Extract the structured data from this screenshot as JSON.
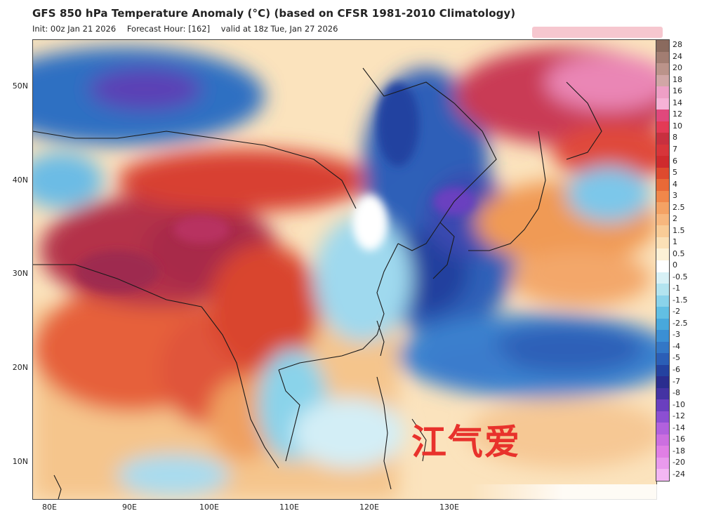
{
  "title": "GFS 850 hPa Temperature Anomaly (°C) (based on CFSR 1981-2010 Climatology)",
  "subtitle": {
    "init": "Init: 00z Jan 21 2026",
    "forecast_hour": "Forecast Hour: [162]",
    "valid": "valid at 18z Tue, Jan 27 2026"
  },
  "lat_labels": [
    "50N",
    "40N",
    "30N",
    "20N",
    "10N"
  ],
  "lon_labels": [
    "80E",
    "90E",
    "100E",
    "110E",
    "120E",
    "130E"
  ],
  "colorbar": {
    "values": [
      "28",
      "24",
      "20",
      "18",
      "16",
      "14",
      "12",
      "10",
      "8",
      "7",
      "6",
      "5",
      "4",
      "3",
      "2.5",
      "2",
      "1.5",
      "1",
      "0.5",
      "0",
      "-0.5",
      "-1",
      "-1.5",
      "-2",
      "-2.5",
      "-3",
      "-4",
      "-5",
      "-6",
      "-7",
      "-8",
      "-10",
      "-12",
      "-14",
      "-16",
      "-18",
      "-20",
      "-24"
    ],
    "colors": [
      "#8a6a5e",
      "#a27d72",
      "#bb938a",
      "#d1a6a6",
      "#ee9fc6",
      "#f6b2d6",
      "#e0487c",
      "#e33a55",
      "#c8303f",
      "#d7353a",
      "#cf2a2d",
      "#de4a2e",
      "#e86937",
      "#f0874a",
      "#f4a264",
      "#f7b77e",
      "#f9cc97",
      "#fbe0b6",
      "#fdf1d6",
      "#ffffff",
      "#d8f1f6",
      "#b3e4ef",
      "#8ad3ea",
      "#62bfe3",
      "#48a8dc",
      "#3b8fd4",
      "#3377c6",
      "#2b5eb6",
      "#2442a0",
      "#2a2d8f",
      "#4433a3",
      "#6a3fbf",
      "#8c4fd2",
      "#b161dd",
      "#cc6fe0",
      "#e07fe5",
      "#e99aed",
      "#f3b7f3"
    ]
  },
  "map": {
    "icon": "temperature-anomaly-map",
    "note_colors": {
      "warm": "#d03a2e",
      "cold": "#2b5eb6",
      "neutral": "#fff6e6"
    }
  },
  "watermark": "江气爱"
}
